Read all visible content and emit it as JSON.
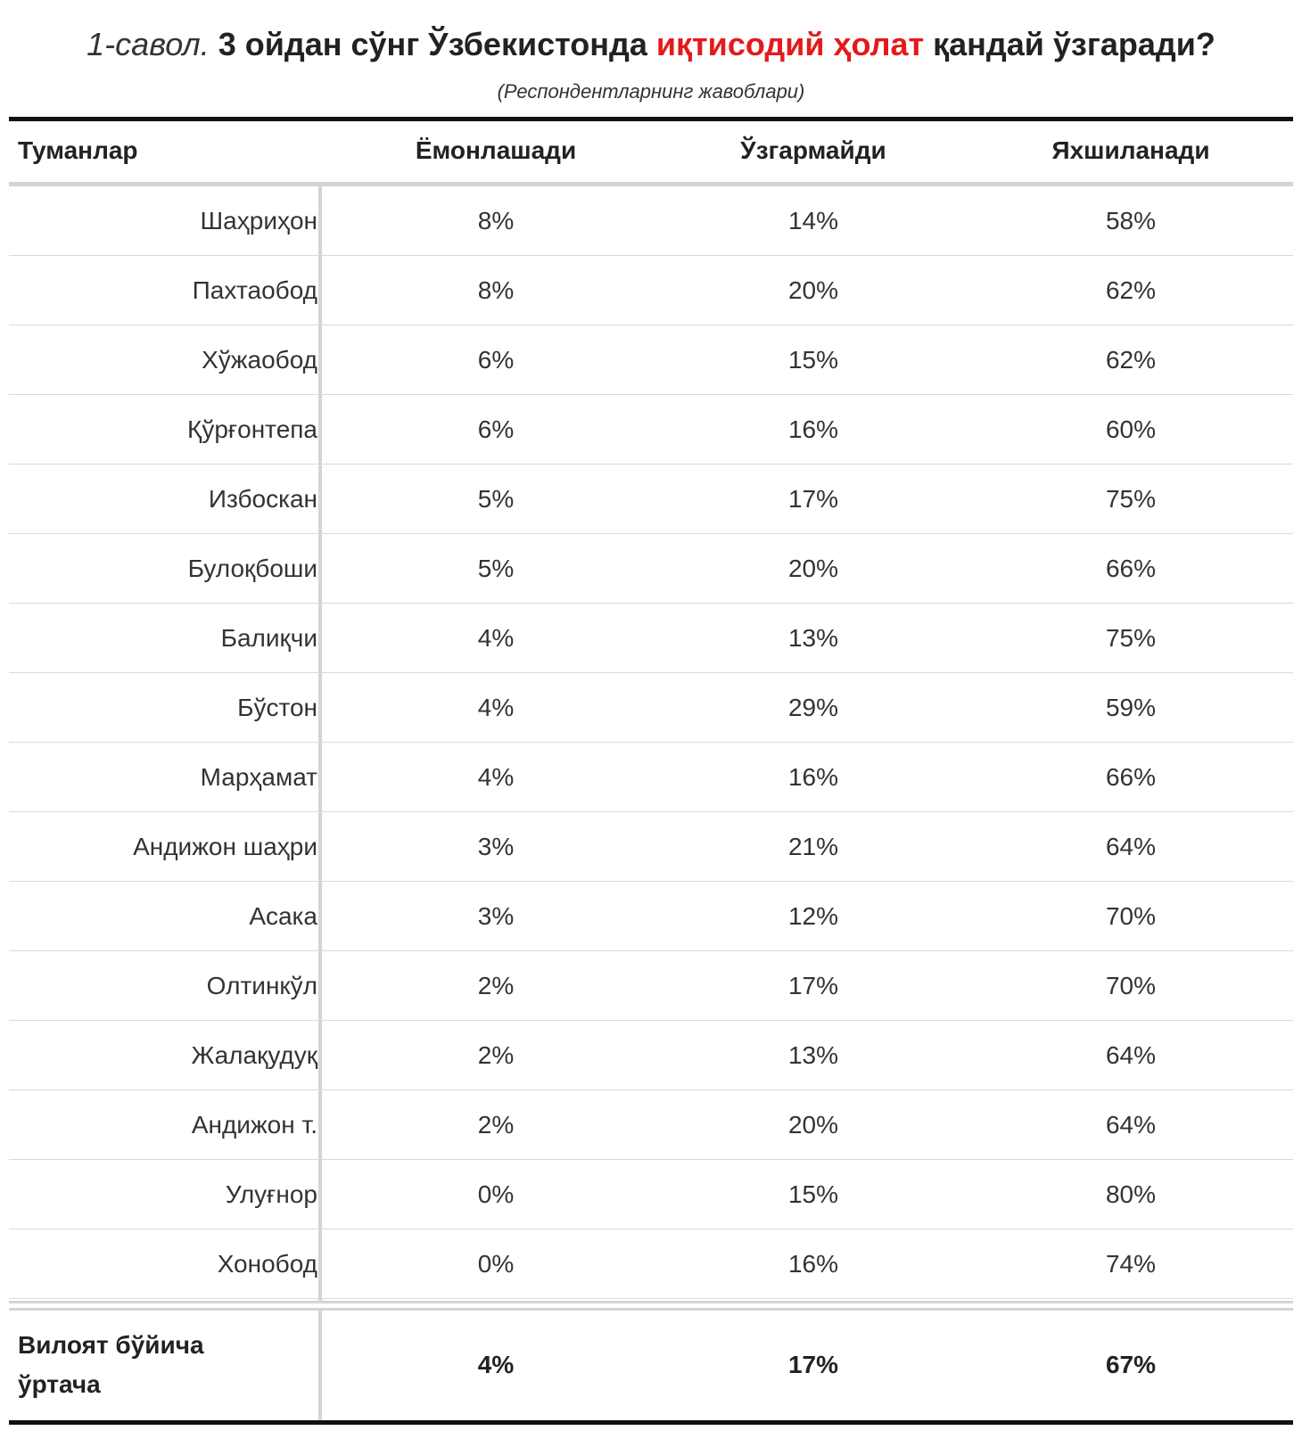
{
  "title": {
    "prefix": "1-савол.",
    "main_before": "3 ойдан сўнг Ўзбекистонда",
    "highlight": "иқтисодий ҳолат",
    "main_after": "қандай ўзгаради?"
  },
  "subtitle": "(Респондентларнинг жавоблари)",
  "colors": {
    "highlight": "#e31a1c",
    "rule_dark": "#111111",
    "rule_light": "#d4d4d4"
  },
  "table": {
    "headers": [
      "Туманлар",
      "Ёмонлашади",
      "Ўзгармайди",
      "Яхшиланади"
    ],
    "rows": [
      {
        "district": "Шаҳриҳон",
        "worse": "8%",
        "same": "14%",
        "better": "58%"
      },
      {
        "district": "Пахтаобод",
        "worse": "8%",
        "same": "20%",
        "better": "62%"
      },
      {
        "district": "Хўжаобод",
        "worse": "6%",
        "same": "15%",
        "better": "62%"
      },
      {
        "district": "Қўрғонтепа",
        "worse": "6%",
        "same": "16%",
        "better": "60%"
      },
      {
        "district": "Избоскан",
        "worse": "5%",
        "same": "17%",
        "better": "75%"
      },
      {
        "district": "Булоқбоши",
        "worse": "5%",
        "same": "20%",
        "better": "66%"
      },
      {
        "district": "Балиқчи",
        "worse": "4%",
        "same": "13%",
        "better": "75%"
      },
      {
        "district": "Бўстон",
        "worse": "4%",
        "same": "29%",
        "better": "59%"
      },
      {
        "district": "Марҳамат",
        "worse": "4%",
        "same": "16%",
        "better": "66%"
      },
      {
        "district": "Андижон шаҳри",
        "worse": "3%",
        "same": "21%",
        "better": "64%"
      },
      {
        "district": "Асака",
        "worse": "3%",
        "same": "12%",
        "better": "70%"
      },
      {
        "district": "Олтинкўл",
        "worse": "2%",
        "same": "17%",
        "better": "70%"
      },
      {
        "district": "Жалақудуқ",
        "worse": "2%",
        "same": "13%",
        "better": "64%"
      },
      {
        "district": "Андижон т.",
        "worse": "2%",
        "same": "20%",
        "better": "64%"
      },
      {
        "district": "Улуғнор",
        "worse": "0%",
        "same": "15%",
        "better": "80%"
      },
      {
        "district": "Хонобод",
        "worse": "0%",
        "same": "16%",
        "better": "74%"
      }
    ],
    "footer": {
      "label_line1": "Вилоят бўйича",
      "label_line2": "ўртача",
      "worse": "4%",
      "same": "17%",
      "better": "67%"
    }
  }
}
